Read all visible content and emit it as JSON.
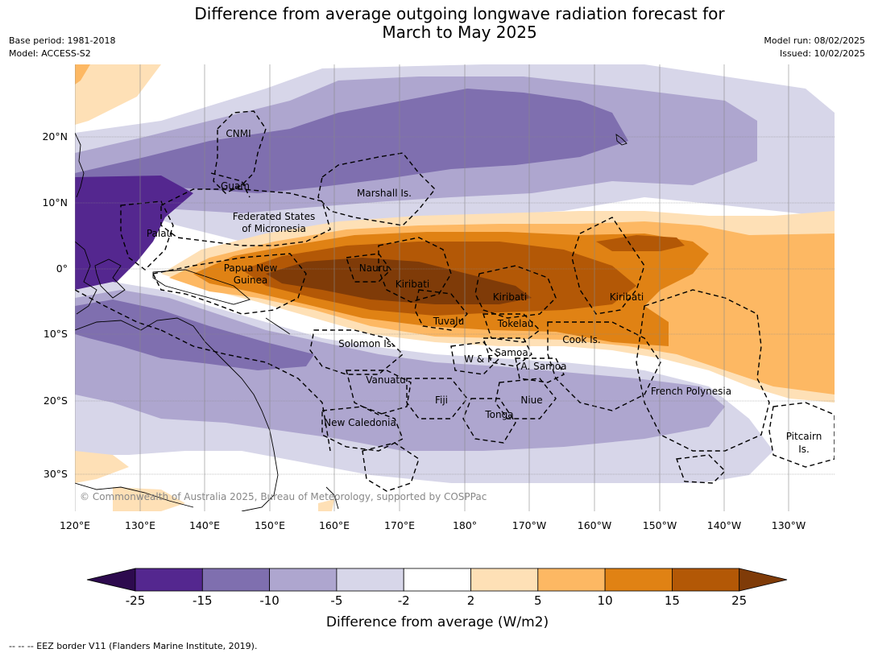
{
  "header": {
    "title_line1": "Difference from average outgoing longwave radiation forecast for",
    "title_line2": "March to May 2025",
    "base_period": "Base period: 1981-2018",
    "model": "Model: ACCESS-S2",
    "model_run": "Model run: 08/02/2025",
    "issued": "Issued: 10/02/2025"
  },
  "map": {
    "latitude_labels": [
      "20°N",
      "10°N",
      "0°",
      "10°S",
      "20°S",
      "30°S"
    ],
    "longitude_labels": [
      "120°E",
      "130°E",
      "140°E",
      "150°E",
      "160°E",
      "170°E",
      "180°",
      "170°W",
      "160°W",
      "150°W",
      "140°W",
      "130°W"
    ],
    "place_labels": {
      "cnmi": "CNMI",
      "guam": "Guam",
      "marshall": "Marshall Is.",
      "fsm_1": "Federated States",
      "fsm_2": "of Micronesia",
      "palau": "Palau",
      "png_1": "Papua New",
      "png_2": "Guinea",
      "nauru": "Nauru",
      "kiribati_w": "Kiribati",
      "kiribati_c": "Kiribati",
      "kiribati_e": "Kiribati",
      "tuvalu": "Tuvalu",
      "tokelau": "Tokelau",
      "cook": "Cook Is.",
      "solomon": "Solomon Is.",
      "wf": "W & F",
      "samoa": "Samoa",
      "asamoa": "A. Samoa",
      "vanuatu": "Vanuatu",
      "fiji": "Fiji",
      "niue": "Niue",
      "tonga": "Tonga",
      "frenchpoly": "French Polynesia",
      "newcal": "New Caledonia",
      "pitcairn_1": "Pitcairn",
      "pitcairn_2": "Is."
    },
    "credit": "© Commonwealth of Australia 2025, Bureau of Meteorology, supported by COSPPac"
  },
  "colorbar": {
    "title": "Difference from average (W/m2)",
    "ticks": [
      "-25",
      "-15",
      "-10",
      "-5",
      "-2",
      "2",
      "5",
      "10",
      "15",
      "25"
    ],
    "colors": {
      "below_min": "#2d0a4e",
      "b_-25_-15": "#54278f",
      "b_-15_-10": "#7f6faf",
      "b_-10_-5": "#aea6cf",
      "b_-5_-2": "#d7d6e9",
      "b_-2_2": "#ffffff",
      "b_2_5": "#fee0b6",
      "b_5_10": "#fdb863",
      "b_10_15": "#e08214",
      "b_15_25": "#b35806",
      "above_max": "#7f3b08"
    }
  },
  "footnote": "--  --  -- EEZ border V11 (Flanders Marine Institute, 2019)."
}
